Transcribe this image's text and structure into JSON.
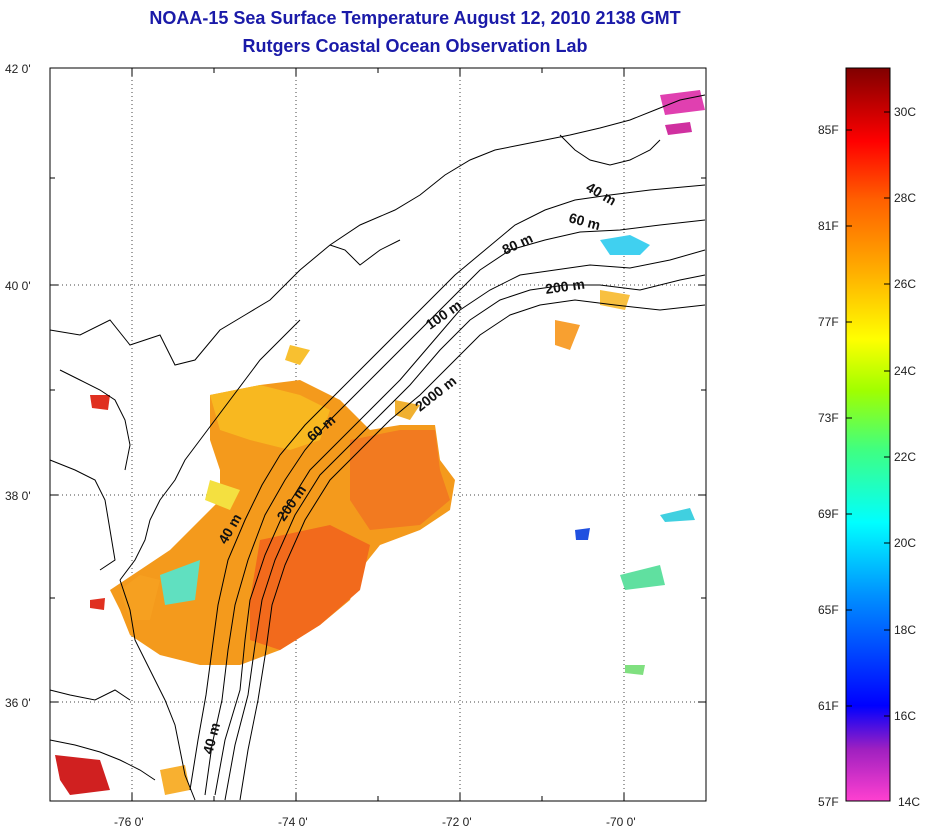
{
  "header": {
    "title": "NOAA-15 Sea Surface Temperature August 12, 2010 2138 GMT",
    "subtitle": "Rutgers Coastal Ocean Observation Lab"
  },
  "map": {
    "lat_ticks": [
      "42 0'",
      "40 0'",
      "38 0'",
      "36 0'"
    ],
    "lon_ticks": [
      "-76 0'",
      "-74 0'",
      "-72 0'",
      "-70 0'"
    ],
    "isobath_labels": [
      "40 m",
      "60 m",
      "80 m",
      "200 m",
      "100 m",
      "2000 m",
      "60 m",
      "200 m",
      "40 m",
      "40 m"
    ]
  },
  "colorbar": {
    "fahrenheit": [
      "85F",
      "81F",
      "77F",
      "73F",
      "69F",
      "65F",
      "61F",
      "57F"
    ],
    "celsius": [
      "30C",
      "28C",
      "26C",
      "24C",
      "22C",
      "20C",
      "18C",
      "16C",
      "14C"
    ],
    "colors": [
      "#ff40c0",
      "#8000c0",
      "#0000ff",
      "#0080ff",
      "#00ffff",
      "#00ff80",
      "#80ff00",
      "#ffff00",
      "#ffa000",
      "#ff6000",
      "#ff0000",
      "#b00000",
      "#800000"
    ]
  }
}
